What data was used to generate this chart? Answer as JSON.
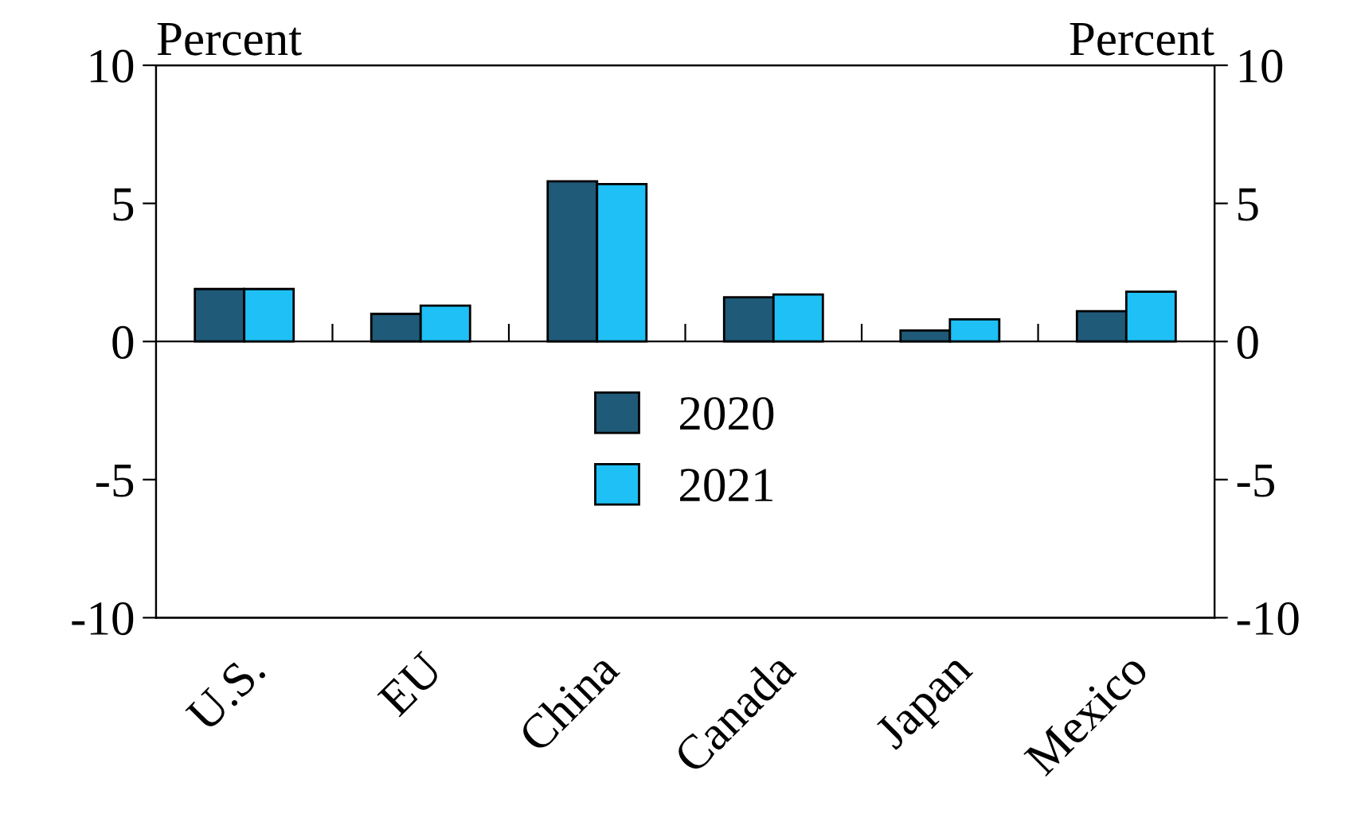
{
  "chart_data": {
    "type": "bar",
    "categories": [
      "U.S.",
      "EU",
      "China",
      "Canada",
      "Japan",
      "Mexico"
    ],
    "series": [
      {
        "name": "2020",
        "color": "#1f5a78",
        "values": [
          1.9,
          1.0,
          5.8,
          1.6,
          0.4,
          1.1
        ]
      },
      {
        "name": "2021",
        "color": "#1ec0f5",
        "values": [
          1.9,
          1.3,
          5.7,
          1.7,
          0.8,
          1.8
        ]
      }
    ],
    "ylabel": "Percent",
    "y2label": "Percent",
    "ylim": [
      -10,
      10
    ],
    "yticks": [
      -10,
      -5,
      0,
      5,
      10
    ],
    "y2lim": [
      -10,
      10
    ],
    "y2ticks": [
      -10,
      -5,
      0,
      5,
      10
    ],
    "legend": "center"
  }
}
